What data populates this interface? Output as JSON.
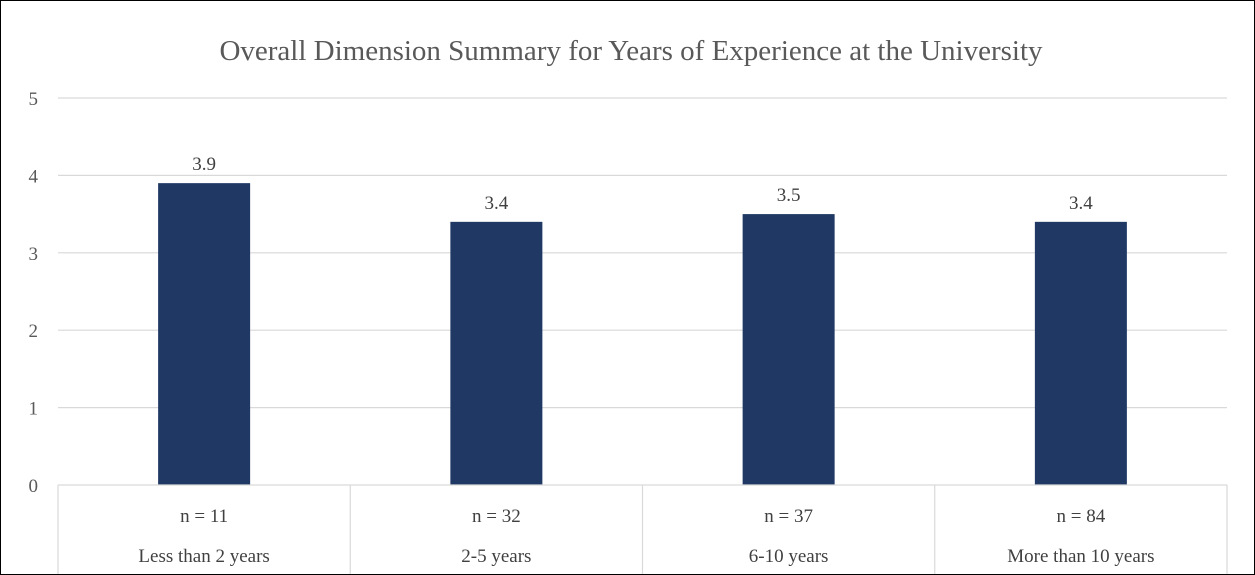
{
  "chart_data": {
    "type": "bar",
    "title": "Overall Dimension Summary for Years of Experience at the University",
    "categories": [
      "Less than 2 years",
      "2-5 years",
      "6-10 years",
      "More than 10 years"
    ],
    "sample_sizes": [
      "n = 11",
      "n = 32",
      "n = 37",
      "n = 84"
    ],
    "values": [
      3.9,
      3.4,
      3.5,
      3.4
    ],
    "value_labels": [
      "3.9",
      "3.4",
      "3.5",
      "3.4"
    ],
    "ylim": [
      0,
      5
    ],
    "yticks": [
      0,
      1,
      2,
      3,
      4,
      5
    ],
    "ytick_labels": [
      "0",
      "1",
      "2",
      "3",
      "4",
      "5"
    ],
    "grid": true,
    "legend": "none",
    "bar_color": "#1f3864"
  }
}
